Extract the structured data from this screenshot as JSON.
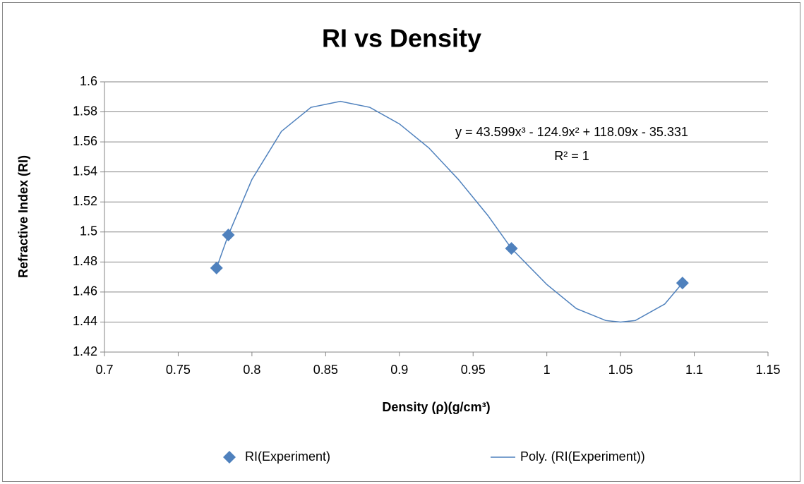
{
  "chart_data": {
    "type": "scatter",
    "title": "RI vs Density",
    "xlabel": "Density (ρ)(g/cm³)",
    "ylabel": "Refractive Index (RI)",
    "xlim": [
      0.7,
      1.15
    ],
    "xticks": [
      0.7,
      0.75,
      0.8,
      0.85,
      0.9,
      0.95,
      1,
      1.05,
      1.1,
      1.15
    ],
    "ylim": [
      1.42,
      1.6
    ],
    "yticks": [
      1.42,
      1.44,
      1.46,
      1.48,
      1.5,
      1.52,
      1.54,
      1.56,
      1.58,
      1.6
    ],
    "grid": true,
    "legend": "bottom",
    "annotations": [
      "y = 43.599x³ - 124.9x² + 118.09x - 35.331",
      "R² = 1"
    ],
    "series": [
      {
        "name": "RI(Experiment)",
        "color": "#4f81bd",
        "marker": "diamond",
        "x": [
          0.776,
          0.784,
          0.976,
          1.092
        ],
        "values": [
          1.476,
          1.498,
          1.489,
          1.466
        ]
      },
      {
        "name": "Poly. (RI(Experiment))",
        "color": "#4f81bd",
        "marker": "line",
        "x": [
          0.776,
          0.784,
          0.8,
          0.82,
          0.84,
          0.86,
          0.88,
          0.9,
          0.92,
          0.94,
          0.96,
          0.976,
          1.0,
          1.02,
          1.04,
          1.05,
          1.06,
          1.08,
          1.092
        ],
        "values": [
          1.476,
          1.498,
          1.535,
          1.567,
          1.583,
          1.587,
          1.583,
          1.572,
          1.556,
          1.535,
          1.511,
          1.489,
          1.465,
          1.449,
          1.441,
          1.44,
          1.441,
          1.452,
          1.466
        ]
      }
    ]
  }
}
